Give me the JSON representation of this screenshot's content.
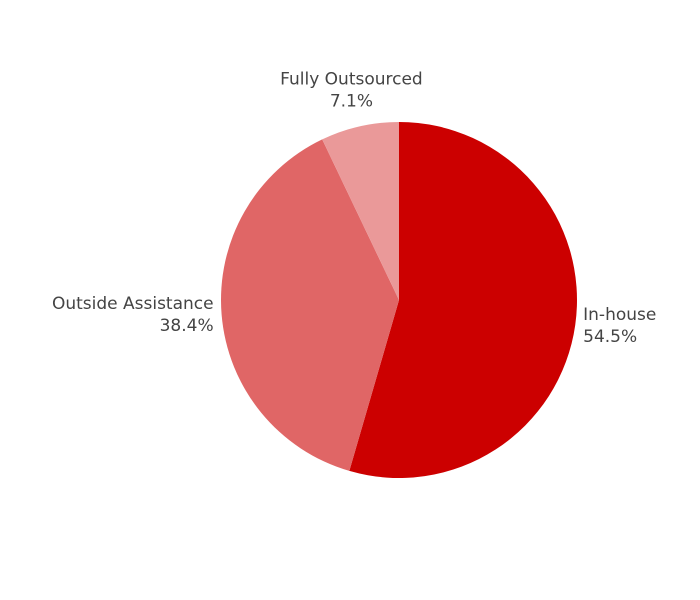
{
  "chart_data": {
    "type": "pie",
    "categories": [
      "In-house",
      "Outside Assistance",
      "Fully Outsourced"
    ],
    "values": [
      54.5,
      38.4,
      7.1
    ],
    "value_labels": [
      "54.5%",
      "38.4%",
      "7.1%"
    ],
    "colors": [
      "#cc0000",
      "#e06666",
      "#ea9999"
    ]
  }
}
